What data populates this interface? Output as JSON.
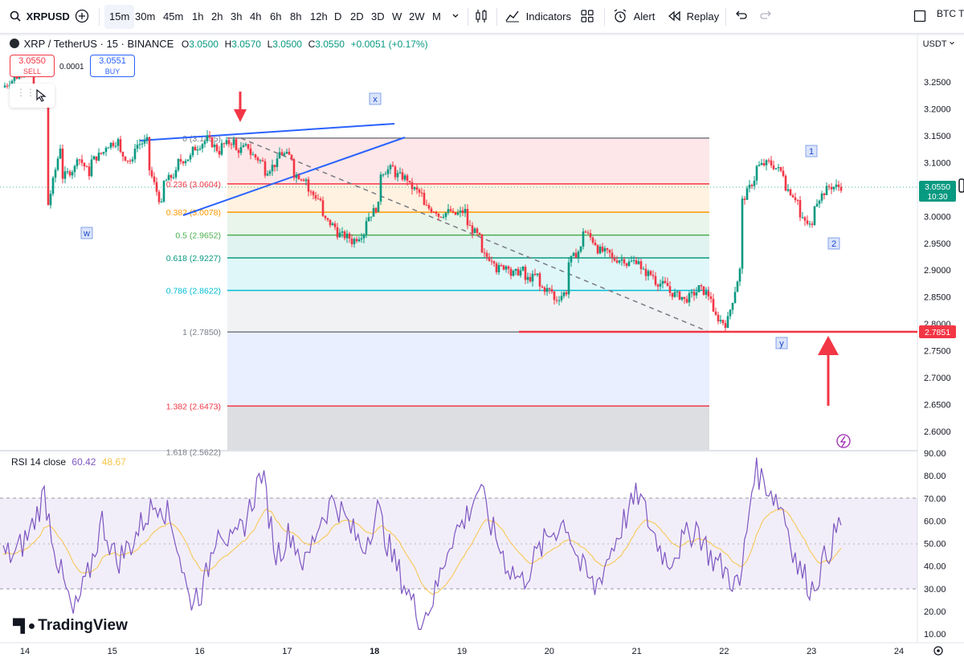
{
  "toolbar": {
    "symbol": "XRPUSD",
    "timeframes": [
      "15m",
      "30m",
      "45m",
      "1h",
      "2h",
      "3h",
      "4h",
      "6h",
      "8h",
      "12h",
      "D",
      "2D",
      "3D",
      "W",
      "2W",
      "M"
    ],
    "active_timeframe": "15m",
    "indicators_label": "Indicators",
    "alert_label": "Alert",
    "replay_label": "Replay",
    "right_label": "BTC T"
  },
  "legend": {
    "symbol": "XRP / TetherUS · 15 · BINANCE",
    "open_key": "O",
    "open": "3.0500",
    "high_key": "H",
    "high": "3.0570",
    "low_key": "L",
    "low": "3.0500",
    "close_key": "C",
    "close": "3.0550",
    "change": "+0.0051 (+0.17%)"
  },
  "trade": {
    "sell_price": "3.0550",
    "sell_label": "SELL",
    "buy_price": "3.0551",
    "buy_label": "BUY",
    "spread": "0.0001"
  },
  "price_axis": {
    "currency": "USDT",
    "labels": [
      "3.2500",
      "3.2000",
      "3.1500",
      "3.1000",
      "3.0500",
      "3.0000",
      "2.9500",
      "2.9000",
      "2.8500",
      "2.8000",
      "2.7500",
      "2.7000",
      "2.6500",
      "2.6000"
    ],
    "current_price": "3.0550",
    "countdown": "10:30",
    "line_price": "2.7851"
  },
  "fib_levels": [
    {
      "label": "0 (3.1455)",
      "value": 3.1455,
      "color": "#787b86"
    },
    {
      "label": "0.236 (3.0604)",
      "value": 3.0604,
      "color": "#f23645"
    },
    {
      "label": "0.382 (3.0078)",
      "value": 3.0078,
      "color": "#ff9800"
    },
    {
      "label": "0.5 (2.9652)",
      "value": 2.9652,
      "color": "#4caf50"
    },
    {
      "label": "0.618 (2.9227)",
      "value": 2.9227,
      "color": "#089981"
    },
    {
      "label": "0.786 (2.8622)",
      "value": 2.8622,
      "color": "#00bcd4"
    },
    {
      "label": "1 (2.7850)",
      "value": 2.785,
      "color": "#787b86"
    },
    {
      "label": "1.382 (2.6473)",
      "value": 2.6473,
      "color": "#f23645"
    },
    {
      "label": "1.618 (2.5622)",
      "value": 2.5622,
      "color": "#787b86"
    }
  ],
  "wave_labels": [
    "w",
    "x",
    "y",
    "1",
    "2"
  ],
  "rsi": {
    "name": "RSI 14 close",
    "value": "60.42",
    "ma_value": "48.67",
    "labels": [
      "90.00",
      "80.00",
      "70.00",
      "60.00",
      "50.00",
      "40.00",
      "30.00",
      "20.00",
      "10.00"
    ]
  },
  "time_axis": {
    "labels": [
      "14",
      "15",
      "16",
      "17",
      "18",
      "19",
      "20",
      "21",
      "22",
      "23",
      "24"
    ]
  },
  "logo": "TradingView",
  "colors": {
    "up": "#089981",
    "down": "#f23645",
    "blue": "#2962ff",
    "rsi": "#7e57c2",
    "rsi_ma": "#f7c548"
  },
  "price_path": [
    [
      3.24,
      3.26
    ],
    [
      3.27,
      3.28
    ],
    [
      3.24,
      3.21
    ],
    [
      3.0,
      3.13
    ],
    [
      3.07,
      3.09
    ],
    [
      3.12,
      3.08
    ],
    [
      3.1,
      3.12
    ],
    [
      3.13,
      3.14
    ],
    [
      3.12,
      3.1
    ],
    [
      3.13,
      3.14
    ],
    [
      3.1,
      3.02
    ],
    [
      3.06,
      3.08
    ],
    [
      3.1,
      3.11
    ],
    [
      3.12,
      3.14
    ],
    [
      3.15,
      3.12
    ],
    [
      3.13,
      3.14
    ],
    [
      3.12,
      3.13
    ],
    [
      3.12,
      3.1
    ],
    [
      3.08,
      3.1
    ],
    [
      3.12,
      3.11
    ],
    [
      3.08,
      3.07
    ],
    [
      3.05,
      3.03
    ],
    [
      3.0,
      2.98
    ],
    [
      2.97,
      2.96
    ],
    [
      2.95,
      2.97
    ],
    [
      2.99,
      3.02
    ],
    [
      3.08,
      3.09
    ],
    [
      3.08,
      3.07
    ],
    [
      3.06,
      3.04
    ],
    [
      3.02,
      3.01
    ],
    [
      3.0,
      3.01
    ],
    [
      3.0,
      3.01
    ],
    [
      2.99,
      2.96
    ],
    [
      2.93,
      2.92
    ],
    [
      2.9,
      2.91
    ],
    [
      2.89,
      2.9
    ],
    [
      2.88,
      2.89
    ],
    [
      2.87,
      2.86
    ],
    [
      2.84,
      2.86
    ],
    [
      2.91,
      2.94
    ],
    [
      2.98,
      2.95
    ],
    [
      2.94,
      2.93
    ],
    [
      2.92,
      2.92
    ],
    [
      2.91,
      2.92
    ],
    [
      2.9,
      2.89
    ],
    [
      2.88,
      2.87
    ],
    [
      2.86,
      2.85
    ],
    [
      2.84,
      2.86
    ],
    [
      2.87,
      2.85
    ],
    [
      2.82,
      2.8
    ],
    [
      2.79,
      2.9
    ],
    [
      3.02,
      3.07
    ],
    [
      3.09,
      3.1
    ],
    [
      3.1,
      3.08
    ],
    [
      3.06,
      3.03
    ],
    [
      3.0,
      2.98
    ],
    [
      3.02,
      3.05
    ],
    [
      3.055,
      3.055
    ]
  ],
  "rsi_path": [
    45,
    55,
    72,
    40,
    18,
    35,
    60,
    42,
    50,
    62,
    70,
    55,
    25,
    30,
    60,
    48,
    62,
    82,
    45,
    55,
    40,
    60,
    70,
    58,
    48,
    65,
    44,
    30,
    15,
    28,
    52,
    60,
    75,
    55,
    40,
    33,
    45,
    55,
    60,
    40,
    30,
    45,
    60,
    72,
    55,
    42,
    50,
    58,
    44,
    38,
    30,
    83,
    75,
    65,
    40,
    30,
    45,
    60
  ]
}
